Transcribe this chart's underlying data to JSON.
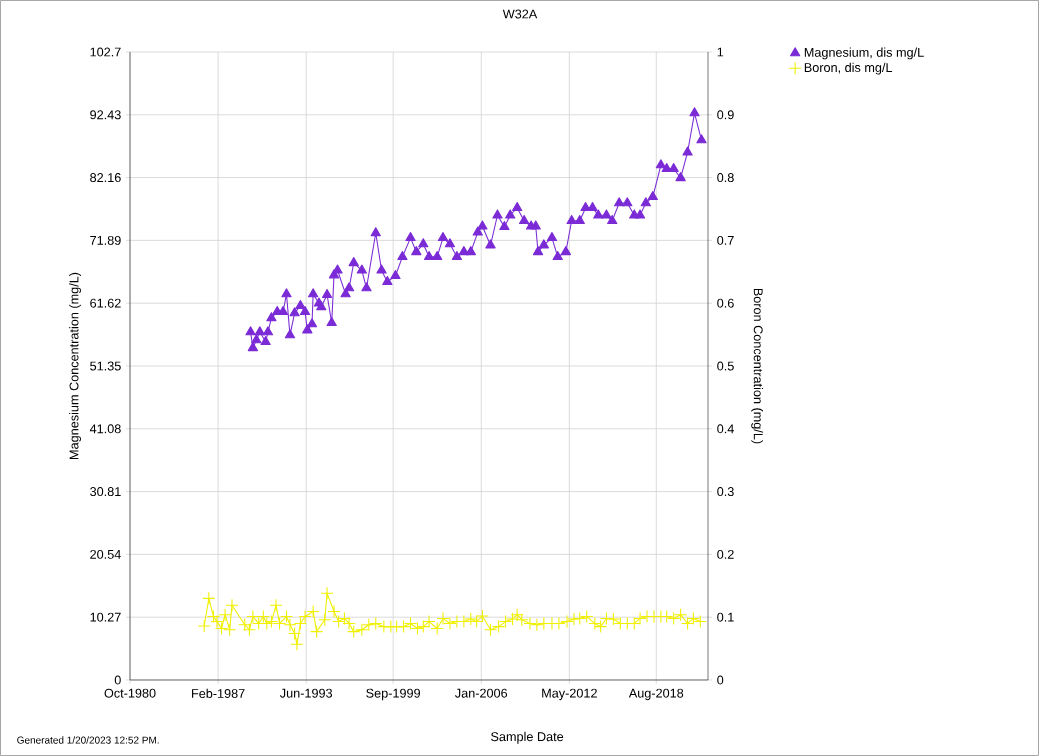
{
  "chart_data": {
    "type": "line",
    "title": "W32A",
    "xlabel": "Sample Date",
    "ylabel": "Magnesium Concentration (mg/L)",
    "y2label": "Boron Concentration (mg/L)",
    "annotations": [
      "Generated 1/20/2023 12:52 PM."
    ],
    "xlim": [
      "1980-10",
      "2022-04-20"
    ],
    "xticks": [
      {
        "value": "1980-10",
        "label": "Oct-1980"
      },
      {
        "value": "1987-02",
        "label": "Feb-1987"
      },
      {
        "value": "1993-06",
        "label": "Jun-1993"
      },
      {
        "value": "1999-09",
        "label": "Sep-1999"
      },
      {
        "value": "2006-01",
        "label": "Jan-2006"
      },
      {
        "value": "2012-05",
        "label": "May-2012"
      },
      {
        "value": "2018-08",
        "label": "Aug-2018"
      }
    ],
    "ylim": [
      0,
      102.7
    ],
    "yticks": [
      0,
      10.27,
      20.54,
      30.81,
      41.08,
      51.35,
      61.62,
      71.89,
      82.16,
      92.43,
      102.7
    ],
    "y2lim": [
      0,
      1
    ],
    "y2ticks": [
      0,
      0.1,
      0.2,
      0.3,
      0.4,
      0.5,
      0.6,
      0.7,
      0.8,
      0.9,
      1
    ],
    "grid": true,
    "legend": "top right",
    "series": [
      {
        "name": "Magnesium, dis mg/L",
        "color": "#7b2bd6",
        "marker": "triangle",
        "axis": "y",
        "x": [
          "1989-06",
          "1989-08",
          "1989-11",
          "1990-02",
          "1990-07",
          "1990-09",
          "1990-12",
          "1991-05",
          "1991-10",
          "1992-01",
          "1992-04",
          "1992-08",
          "1993-01",
          "1993-05",
          "1993-07",
          "1993-11",
          "1993-12",
          "1994-05",
          "1994-07",
          "1994-12",
          "1995-04",
          "1995-06",
          "1995-09",
          "1996-04",
          "1996-07",
          "1996-11",
          "1997-06",
          "1997-10",
          "1998-06",
          "1998-11",
          "1999-04",
          "1999-11",
          "2000-05",
          "2000-12",
          "2001-05",
          "2001-11",
          "2002-04",
          "2002-11",
          "2003-04",
          "2003-10",
          "2004-04",
          "2004-10",
          "2005-04",
          "2005-10",
          "2006-02",
          "2006-09",
          "2007-03",
          "2007-09",
          "2008-02",
          "2008-08",
          "2009-02",
          "2009-08",
          "2009-12",
          "2010-02",
          "2010-07",
          "2011-02",
          "2011-07",
          "2012-02",
          "2012-07",
          "2013-02",
          "2013-07",
          "2014-01",
          "2014-06",
          "2015-01",
          "2015-06",
          "2015-12",
          "2016-07",
          "2017-01",
          "2017-06",
          "2017-11",
          "2018-05",
          "2018-12",
          "2019-05",
          "2019-11",
          "2020-05",
          "2020-11",
          "2021-05",
          "2021-11"
        ],
        "values": [
          56.9,
          54.3,
          55.6,
          56.9,
          55.3,
          56.9,
          59.2,
          60.2,
          60.2,
          63.1,
          56.4,
          60.0,
          61.2,
          60.2,
          57.2,
          58.2,
          63.1,
          61.6,
          61.0,
          63.0,
          58.4,
          66.2,
          67.0,
          63.1,
          64.1,
          68.2,
          67.0,
          64.1,
          73.1,
          67.0,
          65.1,
          66.1,
          69.2,
          72.3,
          70.0,
          71.3,
          69.2,
          69.2,
          72.3,
          71.3,
          69.2,
          70.0,
          70.0,
          73.2,
          74.2,
          71.1,
          76.0,
          74.1,
          76.0,
          77.2,
          75.1,
          74.2,
          74.2,
          70.0,
          71.1,
          72.3,
          69.2,
          70.0,
          75.1,
          75.1,
          77.2,
          77.2,
          76.0,
          76.0,
          75.1,
          78.0,
          78.0,
          76.0,
          76.0,
          78.0,
          79.0,
          84.2,
          83.6,
          83.6,
          82.1,
          86.3,
          92.7,
          88.3
        ]
      },
      {
        "name": "Boron, dis mg/L",
        "color": "#f0f000",
        "marker": "cross",
        "axis": "y2",
        "x": [
          "1986-02",
          "1986-06",
          "1986-10",
          "1987-01",
          "1987-05",
          "1987-08",
          "1987-12",
          "1988-02",
          "1989-01",
          "1989-05",
          "1989-08",
          "1990-01",
          "1990-05",
          "1990-08",
          "1990-12",
          "1991-04",
          "1991-07",
          "1992-01",
          "1992-04",
          "1992-08",
          "1992-10",
          "1993-01",
          "1993-05",
          "1993-12",
          "1994-03",
          "1994-10",
          "1994-12",
          "1995-06",
          "1995-10",
          "1996-03",
          "1996-07",
          "1996-11",
          "1997-06",
          "1997-12",
          "1998-06",
          "1999-01",
          "1999-07",
          "1999-12",
          "2000-06",
          "2000-12",
          "2001-06",
          "2001-11",
          "2002-04",
          "2002-11",
          "2003-04",
          "2003-10",
          "2004-04",
          "2004-10",
          "2005-04",
          "2005-09",
          "2006-02",
          "2006-09",
          "2007-04",
          "2007-10",
          "2008-04",
          "2008-08",
          "2008-12",
          "2009-07",
          "2010-01",
          "2010-07",
          "2011-02",
          "2011-08",
          "2012-03",
          "2012-09",
          "2013-02",
          "2013-08",
          "2014-03",
          "2014-08",
          "2015-01",
          "2015-07",
          "2016-01",
          "2016-07",
          "2017-01",
          "2017-06",
          "2017-12",
          "2018-06",
          "2018-12",
          "2019-05",
          "2019-11",
          "2020-05",
          "2020-11",
          "2021-04",
          "2021-10"
        ],
        "values": [
          0.086,
          0.13,
          0.101,
          0.093,
          0.082,
          0.104,
          0.08,
          0.119,
          0.088,
          0.08,
          0.101,
          0.09,
          0.101,
          0.09,
          0.093,
          0.119,
          0.09,
          0.101,
          0.088,
          0.074,
          0.057,
          0.09,
          0.101,
          0.109,
          0.077,
          0.096,
          0.138,
          0.109,
          0.093,
          0.098,
          0.09,
          0.077,
          0.08,
          0.088,
          0.09,
          0.085,
          0.085,
          0.085,
          0.085,
          0.09,
          0.082,
          0.085,
          0.093,
          0.082,
          0.098,
          0.09,
          0.093,
          0.093,
          0.097,
          0.093,
          0.102,
          0.08,
          0.085,
          0.093,
          0.097,
          0.104,
          0.096,
          0.09,
          0.088,
          0.09,
          0.09,
          0.09,
          0.093,
          0.097,
          0.098,
          0.101,
          0.09,
          0.085,
          0.098,
          0.097,
          0.09,
          0.09,
          0.09,
          0.098,
          0.101,
          0.101,
          0.101,
          0.101,
          0.098,
          0.104,
          0.09,
          0.098,
          0.093
        ]
      }
    ]
  }
}
